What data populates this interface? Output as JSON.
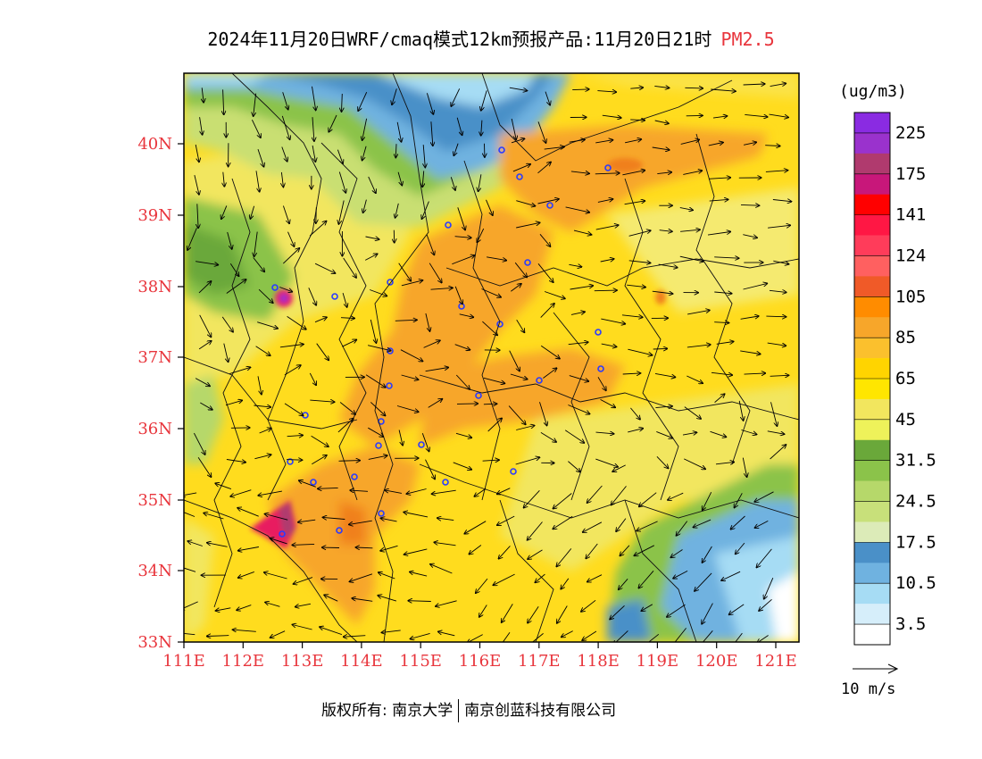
{
  "title": {
    "main": "2024年11月20日WRF/cmaq模式12km预报产品:11月20日21时",
    "species": "PM2.5"
  },
  "axes": {
    "lat_labels": [
      "40N",
      "39N",
      "38N",
      "37N",
      "36N",
      "35N",
      "34N",
      "33N"
    ],
    "lon_labels": [
      "111E",
      "112E",
      "113E",
      "114E",
      "115E",
      "116E",
      "117E",
      "118E",
      "119E",
      "120E",
      "121E"
    ]
  },
  "colorbar": {
    "unit": "(ug/m3)",
    "labels": [
      "225",
      "175",
      "141",
      "124",
      "105",
      "85",
      "65",
      "45",
      "31.5",
      "24.5",
      "17.5",
      "10.5",
      "3.5"
    ],
    "colors": [
      "#8a2be2",
      "#9a32cd",
      "#b03a6e",
      "#c8177a",
      "#ff0000",
      "#ff1744",
      "#ff3c5a",
      "#ff6060",
      "#f05a28",
      "#ff8c00",
      "#f7a62a",
      "#fbc02d",
      "#ffd400",
      "#ffe600",
      "#f2e65e",
      "#eef25a",
      "#6aa83a",
      "#8bc34a",
      "#b6d86a",
      "#c8e07a",
      "#dcebb8",
      "#4a90c8",
      "#6fb2e0",
      "#a6dcf4",
      "#d6eefa",
      "#ffffff"
    ]
  },
  "wind_reference": {
    "label": "10 m/s"
  },
  "footer": {
    "left": "版权所有: 南京大学",
    "right": "南京创蓝科技有限公司"
  }
}
